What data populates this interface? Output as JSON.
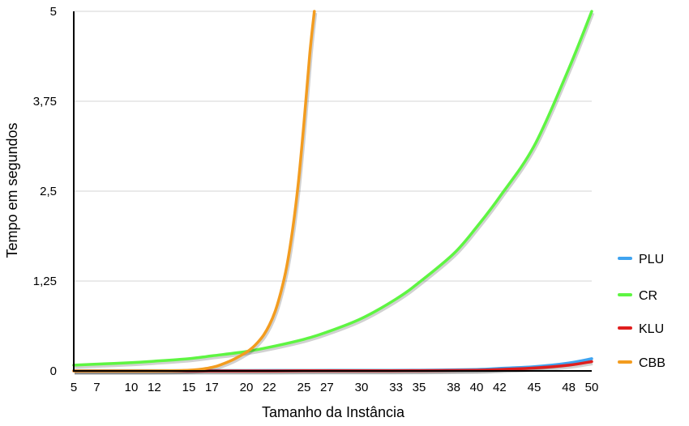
{
  "chart_data": {
    "type": "line",
    "title": "",
    "xlabel": "Tamanho da Instância",
    "ylabel": "Tempo em segundos",
    "ylim": [
      0,
      5
    ],
    "y_ticks": [
      "0",
      "1,25",
      "2,5",
      "3,75",
      "5"
    ],
    "y_tick_values": [
      0,
      1.25,
      2.5,
      3.75,
      5
    ],
    "x_tick_labels": [
      "5",
      "7",
      "10",
      "12",
      "15",
      "17",
      "20",
      "22",
      "25",
      "27",
      "30",
      "33",
      "35",
      "38",
      "40",
      "42",
      "45",
      "48",
      "50"
    ],
    "x_tick_values": [
      5,
      7,
      10,
      12,
      15,
      17,
      20,
      22,
      25,
      27,
      30,
      33,
      35,
      38,
      40,
      42,
      45,
      48,
      50
    ],
    "xlim": [
      5,
      50
    ],
    "grid": true,
    "legend_position": "right",
    "series": [
      {
        "name": "PLU",
        "color": "#3fa3f0",
        "x": [
          5,
          10,
          15,
          20,
          25,
          30,
          35,
          40,
          42,
          45,
          48,
          50
        ],
        "values": [
          0.005,
          0.005,
          0.005,
          0.006,
          0.007,
          0.008,
          0.01,
          0.02,
          0.035,
          0.06,
          0.11,
          0.17
        ]
      },
      {
        "name": "CR",
        "color": "#5ef542",
        "x": [
          5,
          7,
          10,
          12,
          15,
          17,
          20,
          22,
          25,
          27,
          30,
          33,
          35,
          38,
          40,
          42,
          45,
          48,
          50
        ],
        "values": [
          0.08,
          0.095,
          0.115,
          0.135,
          0.17,
          0.21,
          0.27,
          0.33,
          0.44,
          0.54,
          0.73,
          1.0,
          1.23,
          1.63,
          2.0,
          2.42,
          3.13,
          4.2,
          5.0
        ]
      },
      {
        "name": "KLU",
        "color": "#e01e1e",
        "x": [
          5,
          10,
          15,
          20,
          25,
          30,
          35,
          40,
          42,
          45,
          48,
          50
        ],
        "values": [
          0.0,
          0.0,
          0.0,
          0.0,
          0.002,
          0.003,
          0.005,
          0.01,
          0.02,
          0.04,
          0.08,
          0.13
        ]
      },
      {
        "name": "CBB",
        "color": "#f39c1f",
        "x": [
          5,
          10,
          15,
          17,
          18,
          19,
          20,
          20.5,
          21,
          21.5,
          22,
          22.5,
          23,
          23.5,
          24,
          24.5,
          25,
          25.5,
          25.9
        ],
        "values": [
          0.0,
          0.0,
          0.01,
          0.05,
          0.1,
          0.17,
          0.26,
          0.32,
          0.4,
          0.5,
          0.64,
          0.83,
          1.1,
          1.45,
          1.95,
          2.6,
          3.45,
          4.4,
          5.0
        ]
      }
    ]
  }
}
